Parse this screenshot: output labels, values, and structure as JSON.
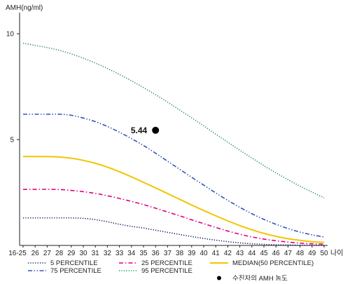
{
  "chart_data": {
    "type": "line",
    "ylabel": "AMH(ng/ml)",
    "xlabel": "나이",
    "x": [
      "16-25",
      "26",
      "27",
      "28",
      "29",
      "30",
      "31",
      "32",
      "33",
      "34",
      "35",
      "36",
      "37",
      "38",
      "39",
      "40",
      "41",
      "42",
      "43",
      "44",
      "45",
      "46",
      "47",
      "48",
      "49",
      "50"
    ],
    "yticks": [
      "5",
      "10"
    ],
    "ylim": [
      0,
      11
    ],
    "grid": false,
    "series": [
      {
        "name": "5 PERCENTILE",
        "color": "#0b1a5e",
        "dash": "dotted",
        "values": [
          1.3,
          1.3,
          1.3,
          1.3,
          1.3,
          1.28,
          1.22,
          1.12,
          1.0,
          0.9,
          0.82,
          0.72,
          0.62,
          0.52,
          0.42,
          0.33,
          0.25,
          0.18,
          0.12,
          0.08,
          0.05,
          0.03,
          0.02,
          0.01,
          0.01,
          0.0
        ]
      },
      {
        "name": "25 PERCENTILE",
        "color": "#e0007f",
        "dash": "dashdot",
        "values": [
          2.65,
          2.65,
          2.65,
          2.64,
          2.6,
          2.54,
          2.46,
          2.35,
          2.22,
          2.08,
          1.93,
          1.76,
          1.58,
          1.4,
          1.21,
          1.03,
          0.85,
          0.68,
          0.53,
          0.4,
          0.3,
          0.22,
          0.16,
          0.11,
          0.08,
          0.06
        ]
      },
      {
        "name": "MEDIAN(50 PERCENTILE)",
        "color": "#f2c500",
        "dash": "solid",
        "values": [
          4.2,
          4.2,
          4.2,
          4.18,
          4.12,
          4.02,
          3.88,
          3.7,
          3.48,
          3.24,
          2.98,
          2.72,
          2.45,
          2.18,
          1.91,
          1.65,
          1.4,
          1.16,
          0.94,
          0.74,
          0.57,
          0.43,
          0.32,
          0.24,
          0.18,
          0.14
        ]
      },
      {
        "name": "75 PERCENTILE",
        "color": "#3355bb",
        "dash": "dashdotdot",
        "values": [
          6.2,
          6.2,
          6.2,
          6.2,
          6.15,
          6.02,
          5.85,
          5.62,
          5.35,
          5.05,
          4.72,
          4.36,
          3.98,
          3.6,
          3.22,
          2.85,
          2.48,
          2.13,
          1.8,
          1.5,
          1.23,
          1.0,
          0.8,
          0.63,
          0.5,
          0.4
        ]
      },
      {
        "name": "95 PERCENTILE",
        "color": "#2e8b57",
        "dash": "dotted",
        "values": [
          9.55,
          9.45,
          9.35,
          9.22,
          9.05,
          8.85,
          8.62,
          8.36,
          8.08,
          7.78,
          7.46,
          7.12,
          6.77,
          6.4,
          6.03,
          5.65,
          5.26,
          4.88,
          4.5,
          4.13,
          3.77,
          3.43,
          3.11,
          2.8,
          2.52,
          2.25
        ]
      }
    ],
    "points": [
      {
        "name": "수진자의 AMH 농도",
        "x": "36",
        "y": 5.44,
        "label": "5.44",
        "color": "#000000"
      }
    ],
    "legend": {
      "placement": "bottom"
    }
  }
}
